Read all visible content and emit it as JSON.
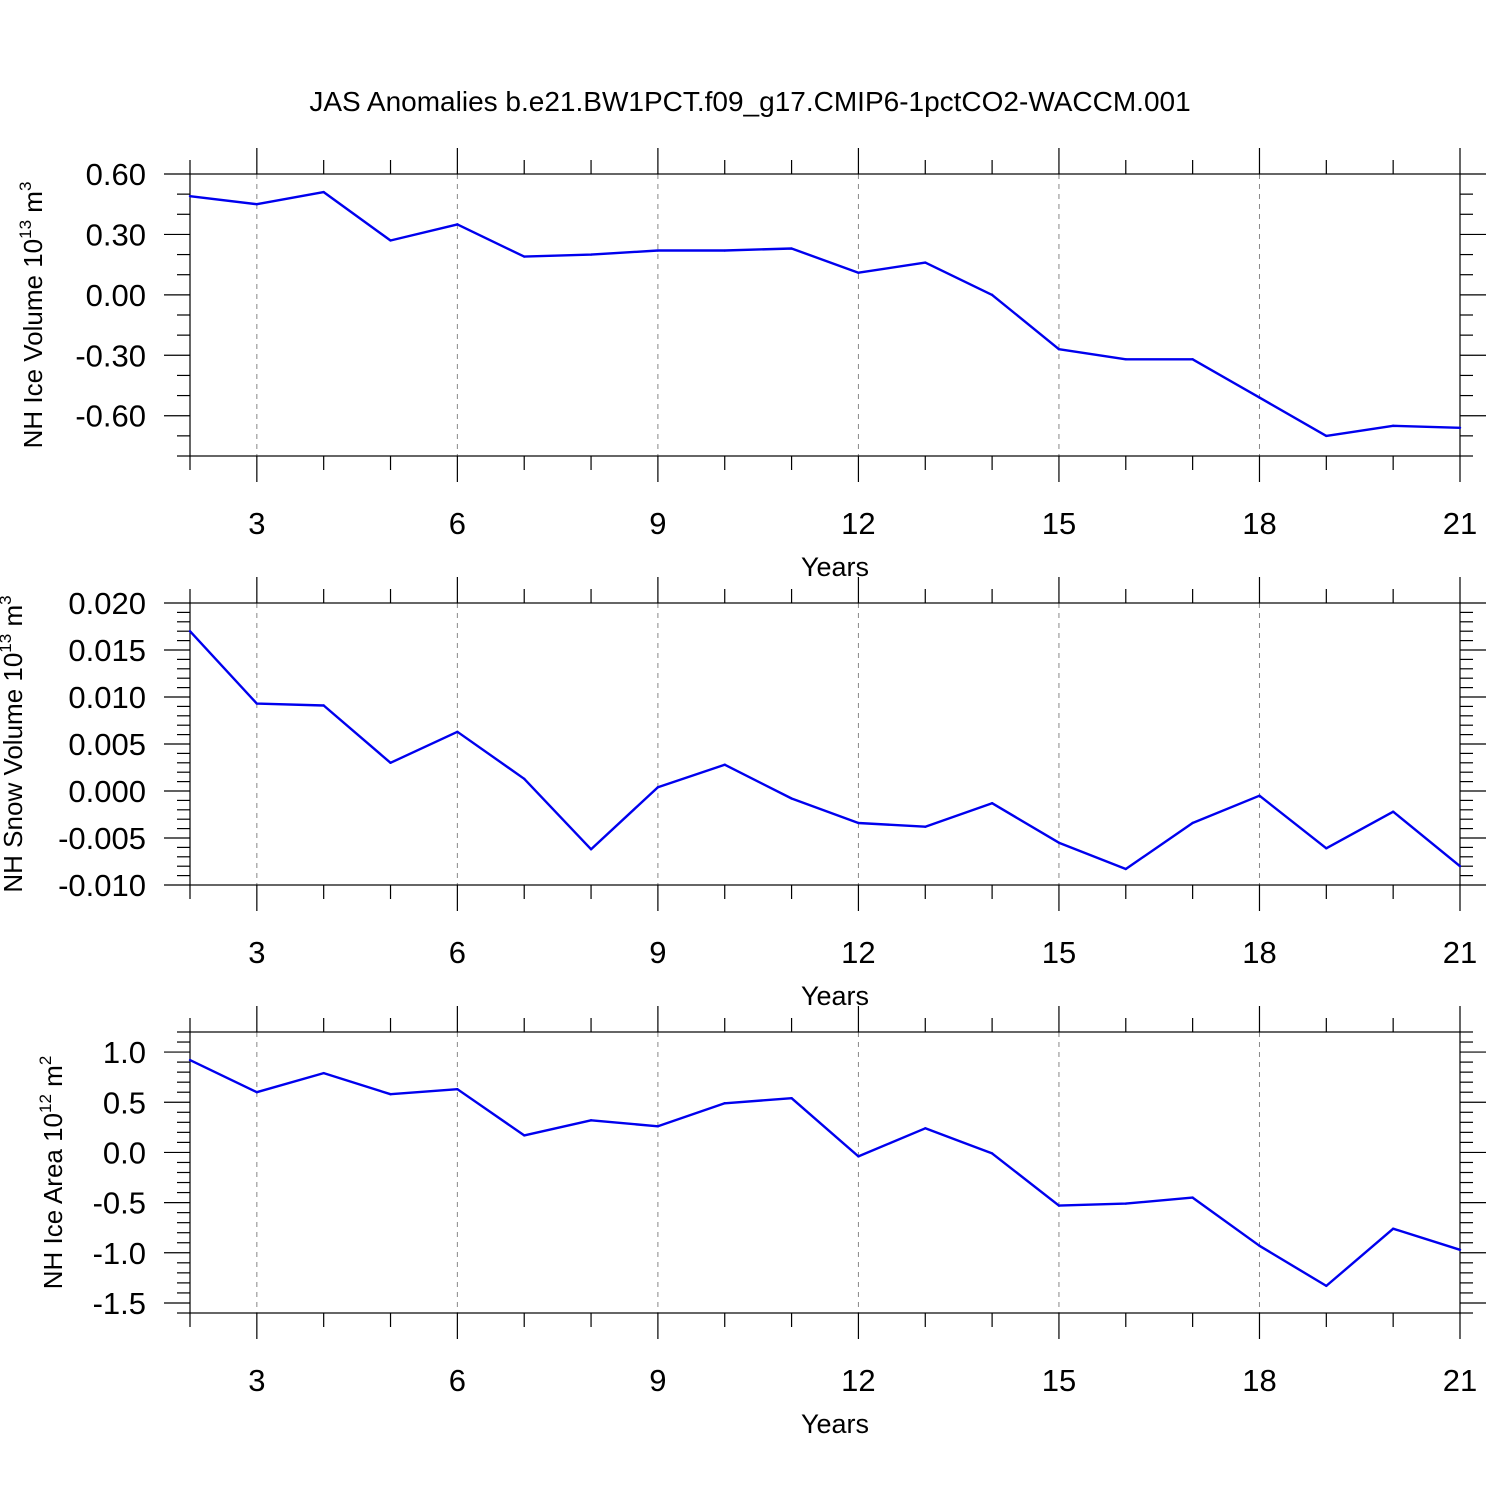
{
  "title": "JAS Anomalies b.e21.BW1PCT.f09_g17.CMIP6-1pctCO2-WACCM.001",
  "colors": {
    "line": "#0000ee",
    "axis": "#000000",
    "grid": "#888888"
  },
  "chart_data": [
    {
      "type": "line",
      "name": "ice-volume",
      "xlabel": "Years",
      "ylabel_main": "NH Ice Volume 10",
      "ylabel_exp": "13",
      "ylabel_unit": " m",
      "ylabel_unit_exp": "3",
      "xlim": [
        2,
        21
      ],
      "ylim": [
        -0.8,
        0.6
      ],
      "grid": "vertical-dashed-at-major-x",
      "x_ticks": [
        3,
        6,
        9,
        12,
        15,
        18,
        21
      ],
      "x_tick_labels": [
        "3",
        "6",
        "9",
        "12",
        "15",
        "18",
        "21"
      ],
      "y_ticks": [
        0.6,
        0.3,
        0.0,
        -0.3,
        -0.6
      ],
      "y_tick_labels": [
        "0.60",
        "0.30",
        "0.00",
        "-0.30",
        "-0.60"
      ],
      "y_minor_step": 0.1,
      "x": [
        2,
        3,
        4,
        5,
        6,
        7,
        8,
        9,
        10,
        11,
        12,
        13,
        14,
        15,
        16,
        17,
        18,
        19,
        20,
        21
      ],
      "values": [
        0.49,
        0.45,
        0.51,
        0.27,
        0.35,
        0.19,
        0.2,
        0.22,
        0.22,
        0.23,
        0.11,
        0.16,
        0.0,
        -0.27,
        -0.32,
        -0.32,
        -0.51,
        -0.7,
        -0.65,
        -0.66
      ]
    },
    {
      "type": "line",
      "name": "snow-volume",
      "xlabel": "Years",
      "ylabel_main": "NH Snow Volume 10",
      "ylabel_exp": "13",
      "ylabel_unit": " m",
      "ylabel_unit_exp": "3",
      "xlim": [
        2,
        21
      ],
      "ylim": [
        -0.01,
        0.02
      ],
      "grid": "vertical-dashed-at-major-x",
      "x_ticks": [
        3,
        6,
        9,
        12,
        15,
        18,
        21
      ],
      "x_tick_labels": [
        "3",
        "6",
        "9",
        "12",
        "15",
        "18",
        "21"
      ],
      "y_ticks": [
        0.02,
        0.015,
        0.01,
        0.005,
        0.0,
        -0.005,
        -0.01
      ],
      "y_tick_labels": [
        "0.020",
        "0.015",
        "0.010",
        "0.005",
        "0.000",
        "-0.005",
        "-0.010"
      ],
      "y_minor_step": 0.001,
      "x": [
        2,
        3,
        4,
        5,
        6,
        7,
        8,
        9,
        10,
        11,
        12,
        13,
        14,
        15,
        16,
        17,
        18,
        19,
        20,
        21
      ],
      "values": [
        0.017,
        0.0093,
        0.0091,
        0.003,
        0.0063,
        0.0013,
        -0.0062,
        0.0004,
        0.0028,
        -0.0008,
        -0.0034,
        -0.0038,
        -0.0013,
        -0.0055,
        -0.0083,
        -0.0034,
        -0.0005,
        -0.0061,
        -0.0022,
        -0.008
      ]
    },
    {
      "type": "line",
      "name": "ice-area",
      "xlabel": "Years",
      "ylabel_main": "NH Ice Area 10",
      "ylabel_exp": "12",
      "ylabel_unit": " m",
      "ylabel_unit_exp": "2",
      "xlim": [
        2,
        21
      ],
      "ylim": [
        -1.6,
        1.2
      ],
      "grid": "vertical-dashed-at-major-x",
      "x_ticks": [
        3,
        6,
        9,
        12,
        15,
        18,
        21
      ],
      "x_tick_labels": [
        "3",
        "6",
        "9",
        "12",
        "15",
        "18",
        "21"
      ],
      "y_ticks": [
        1.0,
        0.5,
        0.0,
        -0.5,
        -1.0,
        -1.5
      ],
      "y_tick_labels": [
        "1.0",
        "0.5",
        "0.0",
        "-0.5",
        "-1.0",
        "-1.5"
      ],
      "y_minor_step": 0.1,
      "x": [
        2,
        3,
        4,
        5,
        6,
        7,
        8,
        9,
        10,
        11,
        12,
        13,
        14,
        15,
        16,
        17,
        18,
        19,
        20,
        21
      ],
      "values": [
        0.92,
        0.6,
        0.79,
        0.58,
        0.63,
        0.17,
        0.32,
        0.26,
        0.49,
        0.54,
        -0.04,
        0.24,
        -0.01,
        -0.53,
        -0.51,
        -0.45,
        -0.93,
        -1.33,
        -0.76,
        -0.97
      ]
    }
  ]
}
